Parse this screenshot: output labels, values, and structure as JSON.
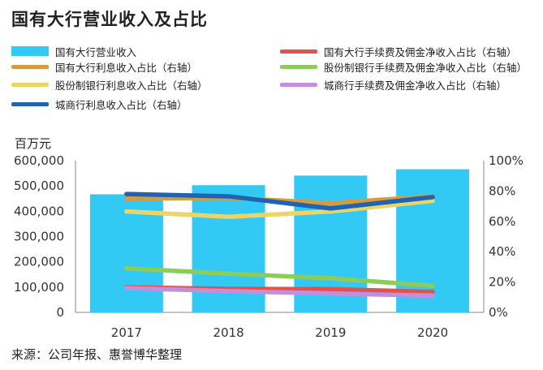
{
  "title": "国有大行营业收入及占比",
  "unit_label": "百万元",
  "source": "来源：公司年报、惠誉博华整理",
  "chart_data": {
    "type": "bar",
    "title": "国有大行营业收入及占比",
    "categories": [
      "2017",
      "2018",
      "2019",
      "2020"
    ],
    "ylabel": "百万元",
    "ylim": [
      0,
      600000
    ],
    "y2lim": [
      0,
      100
    ],
    "yticks": [
      "0",
      "100,000",
      "200,000",
      "300,000",
      "400,000",
      "500,000",
      "600,000"
    ],
    "y2ticks": [
      "0%",
      "20%",
      "40%",
      "60%",
      "80%",
      "100%"
    ],
    "grid": false,
    "legend_position": "top",
    "series": [
      {
        "name": "国有大行营业收入",
        "type": "bar",
        "axis": "left",
        "color": "#33c9f5",
        "values": [
          467000,
          503000,
          541000,
          566000
        ]
      },
      {
        "name": "国有大行手续费及佣金净收入占比（右轴）",
        "type": "line",
        "axis": "right",
        "color": "#e0534a",
        "values": [
          16.5,
          15.5,
          15.3,
          13.5
        ]
      },
      {
        "name": "国有大行利息收入占比（右轴）",
        "type": "line",
        "axis": "right",
        "color": "#d89a3e",
        "values": [
          75.0,
          75.5,
          72.0,
          76.5
        ]
      },
      {
        "name": "股份制银行手续费及佣金净收入占比（右轴）",
        "type": "line",
        "axis": "right",
        "color": "#8ccc5a",
        "values": [
          29.0,
          25.5,
          22.5,
          17.5
        ]
      },
      {
        "name": "股份制银行利息收入占比（右轴）",
        "type": "line",
        "axis": "right",
        "color": "#ead566",
        "values": [
          66.5,
          63.0,
          66.5,
          73.5
        ]
      },
      {
        "name": "城商行手续费及佣金净收入占比（右轴）",
        "type": "line",
        "axis": "right",
        "color": "#c38fdc",
        "values": [
          16.0,
          14.0,
          12.5,
          11.0
        ]
      },
      {
        "name": "城商行利息收入占比（右轴）",
        "type": "line",
        "axis": "right",
        "color": "#1f63b3",
        "values": [
          78.0,
          76.5,
          68.5,
          76.0
        ]
      }
    ]
  }
}
